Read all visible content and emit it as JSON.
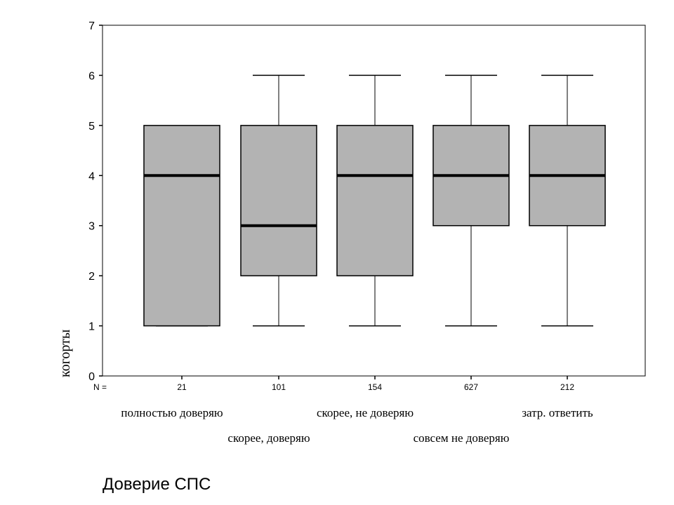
{
  "chart_data": {
    "type": "boxplot",
    "title": "",
    "xlabel": "Доверие СПС",
    "ylabel": "когорты",
    "ylim": [
      0,
      7
    ],
    "yticks": [
      0,
      1,
      2,
      3,
      4,
      5,
      6,
      7
    ],
    "n_prefix": "N =",
    "grid": false,
    "categories": [
      "полностью доверяю",
      "скорее, доверяю",
      "скорее, не доверяю",
      "совсем не доверяю",
      "затр. ответить"
    ],
    "n": [
      "21",
      "101",
      "154",
      "627",
      "212"
    ],
    "boxes": [
      {
        "min": 1,
        "q1": 1,
        "median": 4,
        "q3": 5,
        "max": 5
      },
      {
        "min": 1,
        "q1": 2,
        "median": 3,
        "q3": 5,
        "max": 6
      },
      {
        "min": 1,
        "q1": 2,
        "median": 4,
        "q3": 5,
        "max": 6
      },
      {
        "min": 1,
        "q1": 3,
        "median": 4,
        "q3": 5,
        "max": 6
      },
      {
        "min": 1,
        "q1": 3,
        "median": 4,
        "q3": 5,
        "max": 6
      }
    ],
    "colors": {
      "box_fill": "#b3b3b3",
      "stroke": "#000000"
    }
  }
}
